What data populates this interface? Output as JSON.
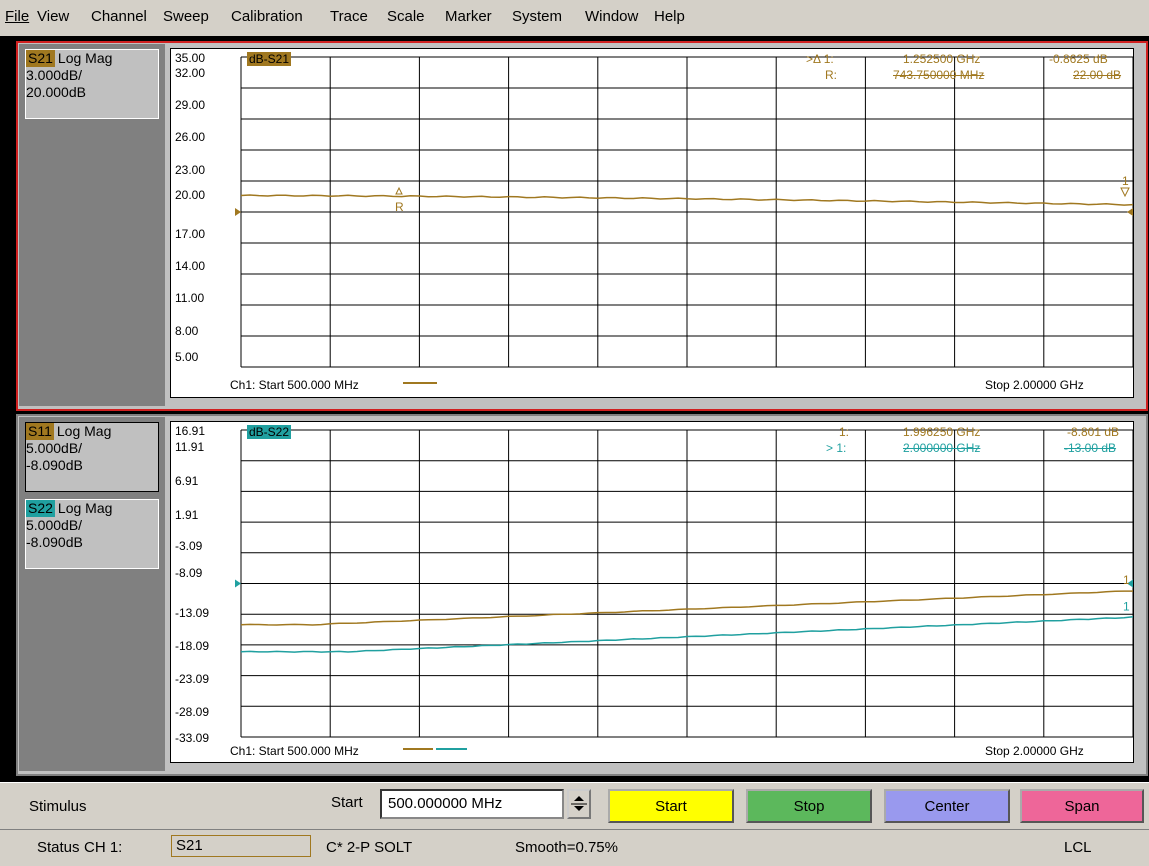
{
  "menu": [
    "File",
    "View",
    "Channel",
    "Sweep",
    "Calibration",
    "Trace",
    "Scale",
    "Marker",
    "System",
    "Window",
    "Help"
  ],
  "window1": {
    "trace_name": "S21",
    "trace_fmt": "Log Mag",
    "scale": "3.000dB/",
    "ref": "20.000dB",
    "trace_tag": "dB-S21",
    "y_ticks": [
      "35.00",
      "32.00",
      "29.00",
      "26.00",
      "23.00",
      "20.00",
      "17.00",
      "14.00",
      "11.00",
      "8.00",
      "5.00"
    ],
    "marker1_label": ">Δ 1:",
    "marker1_freq": "1.252500 GHz",
    "marker1_val": "-0.8625 dB",
    "ref_label": "R:",
    "ref_freq": "743.750000 MHz",
    "ref_val": "22.00 dB",
    "start": "Ch1: Start 500.000 MHz",
    "stop": "Stop 2.00000 GHz",
    "color": "#a07820"
  },
  "window2": {
    "trace1_name": "S11",
    "trace1_fmt": "Log Mag",
    "trace1_scale": "5.000dB/",
    "trace1_ref": "-8.090dB",
    "trace2_name": "S22",
    "trace2_fmt": "Log Mag",
    "trace2_scale": "5.000dB/",
    "trace2_ref": "-8.090dB",
    "trace_tag": "dB-S22",
    "y_ticks": [
      "16.91",
      "11.91",
      "6.91",
      "1.91",
      "-3.09",
      "-8.09",
      "-13.09",
      "-18.09",
      "-23.09",
      "-28.09",
      "-33.09"
    ],
    "marker1_label": "1:",
    "marker1_freq": "1.996250 GHz",
    "marker1_val": "-8.801 dB",
    "marker2_label": "> 1:",
    "marker2_freq": "2.000000 GHz",
    "marker2_val": "-13.00 dB",
    "start": "Ch1: Start 500.000 MHz",
    "stop": "Stop 2.00000 GHz",
    "color1": "#a07820",
    "color2": "#20a0a0"
  },
  "stimulus": {
    "label": "Stimulus",
    "field_label": "Start",
    "field_value": "500.000000 MHz",
    "buttons": [
      {
        "label": "Start",
        "color": "#ffff00"
      },
      {
        "label": "Stop",
        "color": "#5cb85c"
      },
      {
        "label": "Center",
        "color": "#9999ee"
      },
      {
        "label": "Span",
        "color": "#ee6699"
      }
    ]
  },
  "status": {
    "label": "Status",
    "channel": "CH 1:",
    "param": "S21",
    "cal": "C* 2-P SOLT",
    "smooth": "Smooth=0.75%",
    "mode": "LCL"
  }
}
